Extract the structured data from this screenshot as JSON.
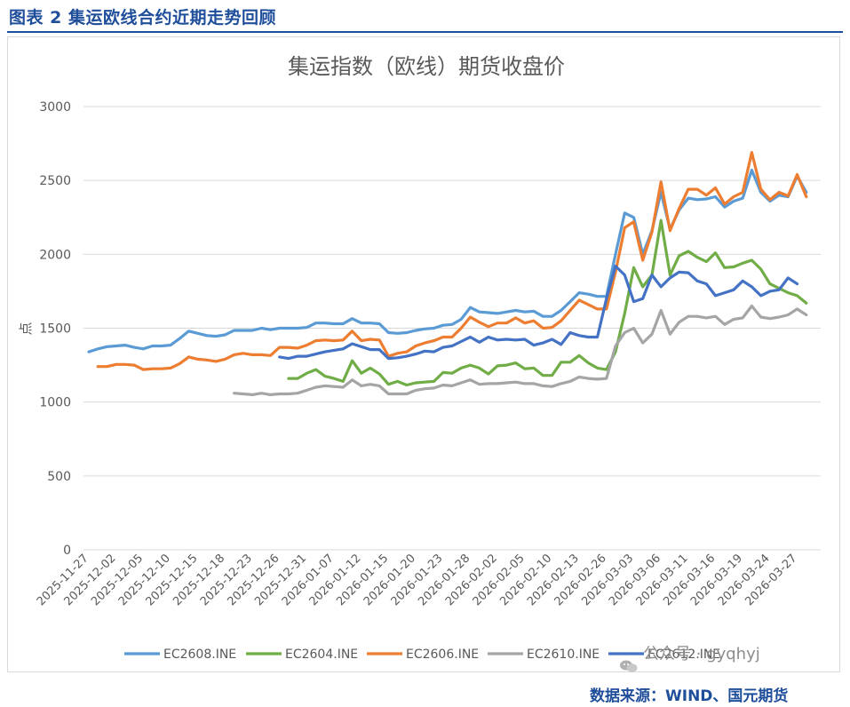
{
  "figure": {
    "label": "图表 2 集运欧线合约近期走势回顾",
    "source": "数据来源：WIND、国元期货",
    "watermark": "公众号 · gyqhyj"
  },
  "chart_data": {
    "type": "line",
    "title": "集运指数（欧线）期货收盘价",
    "ylabel": "点",
    "xlabel": "",
    "ylim": [
      0,
      3000
    ],
    "yticks": [
      0,
      500,
      1000,
      1500,
      2000,
      2500,
      3000
    ],
    "grid": "horizontal",
    "legend_position": "bottom",
    "x": [
      "2025-11-27",
      "2025-11-28",
      "2025-12-01",
      "2025-12-02",
      "2025-12-03",
      "2025-12-04",
      "2025-12-05",
      "2025-12-08",
      "2025-12-09",
      "2025-12-10",
      "2025-12-11",
      "2025-12-12",
      "2025-12-15",
      "2025-12-16",
      "2025-12-17",
      "2025-12-18",
      "2025-12-19",
      "2025-12-22",
      "2025-12-23",
      "2025-12-24",
      "2025-12-25",
      "2025-12-26",
      "2025-12-29",
      "2025-12-30",
      "2025-12-31",
      "2026-01-05",
      "2026-01-06",
      "2026-01-07",
      "2026-01-08",
      "2026-01-09",
      "2026-01-12",
      "2026-01-13",
      "2026-01-14",
      "2026-01-15",
      "2026-01-16",
      "2026-01-19",
      "2026-01-20",
      "2026-01-21",
      "2026-01-22",
      "2026-01-23",
      "2026-01-26",
      "2026-01-27",
      "2026-01-28",
      "2026-01-29",
      "2026-01-30",
      "2026-02-02",
      "2026-02-03",
      "2026-02-04",
      "2026-02-05",
      "2026-02-06",
      "2026-02-09",
      "2026-02-10",
      "2026-02-11",
      "2026-02-12",
      "2026-02-13",
      "2026-02-24",
      "2026-02-25",
      "2026-02-26",
      "2026-02-27",
      "2026-03-02",
      "2026-03-03",
      "2026-03-04",
      "2026-03-05",
      "2026-03-06",
      "2026-03-09",
      "2026-03-10",
      "2026-03-11",
      "2026-03-12",
      "2026-03-13",
      "2026-03-16",
      "2026-03-17",
      "2026-03-18",
      "2026-03-19",
      "2026-03-20",
      "2026-03-23",
      "2026-03-24",
      "2026-03-25",
      "2026-03-26",
      "2026-03-27",
      "2026-03-30",
      "2026-03-31"
    ],
    "xtick_labels": [
      "2025-11-27",
      "2025-12-02",
      "2025-12-05",
      "2025-12-10",
      "2025-12-15",
      "2025-12-18",
      "2025-12-23",
      "2025-12-26",
      "2025-12-31",
      "2026-01-07",
      "2026-01-12",
      "2026-01-15",
      "2026-01-20",
      "2026-01-23",
      "2026-01-28",
      "2026-02-02",
      "2026-02-05",
      "2026-02-10",
      "2026-02-13",
      "2026-02-26",
      "2026-03-03",
      "2026-03-06",
      "2026-03-11",
      "2026-03-16",
      "2026-03-19",
      "2026-03-24",
      "2026-03-27"
    ],
    "series": [
      {
        "name": "EC2608.INE",
        "color": "#5b9bd5",
        "values": [
          1340,
          1360,
          1375,
          1380,
          1385,
          1370,
          1360,
          1380,
          1380,
          1385,
          1430,
          1480,
          1465,
          1450,
          1445,
          1455,
          1485,
          1485,
          1485,
          1500,
          1490,
          1500,
          1500,
          1500,
          1505,
          1535,
          1535,
          1530,
          1530,
          1565,
          1535,
          1535,
          1530,
          1470,
          1465,
          1470,
          1485,
          1495,
          1500,
          1520,
          1525,
          1560,
          1640,
          1610,
          1605,
          1600,
          1610,
          1620,
          1610,
          1615,
          1580,
          1580,
          1620,
          1680,
          1740,
          1730,
          1715,
          1715,
          2000,
          2280,
          2250,
          2000,
          2160,
          2420,
          2170,
          2300,
          2380,
          2370,
          2375,
          2390,
          2320,
          2360,
          2380,
          2570,
          2420,
          2360,
          2400,
          2390,
          2530,
          2420,
          null
        ]
      },
      {
        "name": "EC2604.INE",
        "color": "#70ad47",
        "values": [
          null,
          null,
          null,
          null,
          null,
          null,
          null,
          null,
          null,
          null,
          null,
          null,
          null,
          null,
          null,
          null,
          null,
          null,
          null,
          null,
          null,
          null,
          1160,
          1160,
          1195,
          1220,
          1175,
          1160,
          1140,
          1280,
          1195,
          1230,
          1190,
          1120,
          1140,
          1115,
          1130,
          1135,
          1140,
          1200,
          1195,
          1230,
          1250,
          1230,
          1190,
          1245,
          1250,
          1265,
          1225,
          1230,
          1180,
          1180,
          1270,
          1270,
          1315,
          1265,
          1230,
          1220,
          1340,
          1600,
          1910,
          1780,
          1860,
          2230,
          1860,
          1990,
          2020,
          1980,
          1950,
          2010,
          1910,
          1915,
          1940,
          1960,
          1900,
          1800,
          1770,
          1740,
          1720,
          1670,
          null
        ]
      },
      {
        "name": "EC2606.INE",
        "color": "#ed7d31",
        "values": [
          null,
          1240,
          1240,
          1255,
          1255,
          1250,
          1220,
          1225,
          1225,
          1230,
          1260,
          1305,
          1290,
          1285,
          1275,
          1290,
          1320,
          1330,
          1320,
          1320,
          1315,
          1370,
          1370,
          1365,
          1385,
          1415,
          1420,
          1415,
          1420,
          1480,
          1415,
          1425,
          1420,
          1310,
          1330,
          1340,
          1380,
          1400,
          1415,
          1440,
          1440,
          1500,
          1575,
          1540,
          1510,
          1535,
          1535,
          1570,
          1535,
          1550,
          1500,
          1505,
          1550,
          1620,
          1690,
          1660,
          1630,
          1630,
          1880,
          2180,
          2220,
          1960,
          2150,
          2490,
          2160,
          2310,
          2440,
          2440,
          2400,
          2450,
          2340,
          2390,
          2420,
          2690,
          2440,
          2370,
          2420,
          2395,
          2540,
          2390,
          null
        ]
      },
      {
        "name": "EC2610.INE",
        "color": "#a5a5a5",
        "values": [
          null,
          null,
          null,
          null,
          null,
          null,
          null,
          null,
          null,
          null,
          null,
          null,
          null,
          null,
          null,
          null,
          1060,
          1055,
          1050,
          1060,
          1050,
          1055,
          1055,
          1060,
          1080,
          1100,
          1110,
          1105,
          1100,
          1150,
          1110,
          1120,
          1110,
          1055,
          1055,
          1055,
          1080,
          1090,
          1095,
          1115,
          1110,
          1130,
          1150,
          1120,
          1125,
          1125,
          1130,
          1135,
          1125,
          1125,
          1110,
          1105,
          1125,
          1140,
          1170,
          1160,
          1155,
          1160,
          1380,
          1470,
          1500,
          1400,
          1460,
          1620,
          1460,
          1540,
          1580,
          1580,
          1570,
          1580,
          1525,
          1560,
          1570,
          1650,
          1575,
          1565,
          1575,
          1590,
          1630,
          1590,
          null
        ]
      },
      {
        "name": "EC2612.INE",
        "color": "#4472c4",
        "values": [
          null,
          null,
          null,
          null,
          null,
          null,
          null,
          null,
          null,
          null,
          null,
          null,
          null,
          null,
          null,
          null,
          null,
          null,
          null,
          null,
          null,
          1305,
          1295,
          1310,
          1310,
          1325,
          1340,
          1350,
          1360,
          1395,
          1375,
          1355,
          1355,
          1295,
          1300,
          1310,
          1325,
          1345,
          1340,
          1370,
          1380,
          1410,
          1440,
          1405,
          1440,
          1420,
          1425,
          1420,
          1425,
          1385,
          1400,
          1425,
          1390,
          1470,
          1450,
          1440,
          1440,
          1700,
          1920,
          1860,
          1680,
          1700,
          1860,
          1780,
          1840,
          1880,
          1875,
          1820,
          1800,
          1720,
          1740,
          1760,
          1820,
          1780,
          1720,
          1750,
          1760,
          1840,
          1800,
          null,
          null
        ]
      }
    ]
  }
}
